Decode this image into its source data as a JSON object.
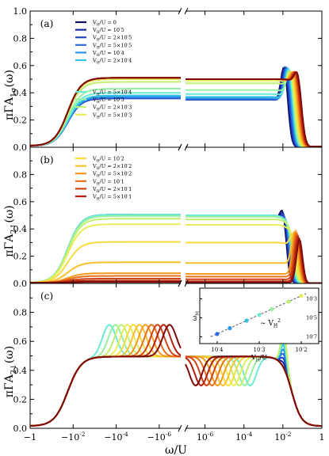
{
  "chart_data": [
    {
      "type": "line",
      "panel_label": "(a)",
      "ylabel": "πΓA_{1σ}(ω)",
      "ylim": [
        0,
        1.0
      ],
      "yticks": [
        "0.0",
        "0.2",
        "0.4",
        "0.6",
        "0.8",
        "1.0"
      ],
      "legend_groups": [
        {
          "placement": "top-left",
          "entries": [
            "V_H/U = 0",
            "V_H/U = 10^-5",
            "V_H/U = 2×10^-5",
            "V_H/U = 5×10^-5",
            "V_H/U = 10^-4",
            "V_H/U = 2×10^-4"
          ]
        },
        {
          "placement": "bottom-left",
          "entries": [
            "V_H/U = 5×10^-4",
            "V_H/U = 10^-3",
            "V_H/U = 2×10^-3",
            "V_H/U = 5×10^-3"
          ]
        }
      ],
      "series_plateau_heights": [
        0.35,
        0.35,
        0.35,
        0.355,
        0.36,
        0.37,
        0.39,
        0.42,
        0.47,
        0.49,
        0.5,
        0.5,
        0.5,
        0.5,
        0.5,
        0.5,
        0.5
      ]
    },
    {
      "type": "line",
      "panel_label": "(b)",
      "ylabel": "πΓA_{2↑}(ω)",
      "ylim": [
        0,
        1.0
      ],
      "yticks": [
        "0.0",
        "0.2",
        "0.4",
        "0.6",
        "0.8"
      ],
      "legend_groups": [
        {
          "placement": "top-left",
          "entries": [
            "V_H/U = 10^-2",
            "V_H/U = 2×10^-2",
            "V_H/U = 5×10^-2",
            "V_H/U = 10^-1",
            "V_H/U = 2×10^-1",
            "V_H/U = 5×10^-1"
          ]
        }
      ],
      "series_plateau_heights": [
        0.5,
        0.5,
        0.5,
        0.5,
        0.5,
        0.5,
        0.5,
        0.49,
        0.47,
        0.43,
        0.3,
        0.15,
        0.07,
        0.05,
        0.03,
        0.015,
        0.005
      ]
    },
    {
      "type": "line",
      "panel_label": "(c)",
      "ylabel": "πΓA_{2↓}(ω)",
      "ylim": [
        0,
        1.0
      ],
      "yticks": [
        "0.0",
        "0.2",
        "0.4",
        "0.6",
        "0.8"
      ],
      "plateau_height": 0.48,
      "inset": {
        "type": "scatter",
        "xlabel": "V_H/U",
        "ylabel": "ω_M",
        "xticks": [
          "10^-4",
          "10^-3",
          "10^-2"
        ],
        "yticks": [
          "10^-7",
          "10^-5",
          "10^-3"
        ],
        "annotation": "∼ V_H^2",
        "points": [
          {
            "x": 0.0001,
            "y": 2e-07
          },
          {
            "x": 0.0002,
            "y": 8e-07
          },
          {
            "x": 0.0005,
            "y": 5e-06
          },
          {
            "x": 0.001,
            "y": 2e-05
          },
          {
            "x": 0.002,
            "y": 8e-05
          },
          {
            "x": 0.005,
            "y": 0.0005
          },
          {
            "x": 0.01,
            "y": 0.002
          }
        ]
      }
    }
  ],
  "shared_x_axis": {
    "label": "ω/U",
    "ticks": [
      "−1",
      "−10^{-2}",
      "−10^{-4}",
      "−10^{-6}",
      "10^{-6}",
      "10^{-4}",
      "10^{-2}",
      "1"
    ],
    "scale": "symmetric log with break at 0"
  },
  "series_colors": [
    "#0d0d5e",
    "#14289b",
    "#1f46c8",
    "#2d6ae0",
    "#2a95e8",
    "#35c2e2",
    "#6aecd4",
    "#96f0a2",
    "#c0f070",
    "#e8ee58",
    "#f6dc3c",
    "#f8c02c",
    "#f49b20",
    "#e8701a",
    "#d04414",
    "#b4200e",
    "#7e0a0a"
  ]
}
